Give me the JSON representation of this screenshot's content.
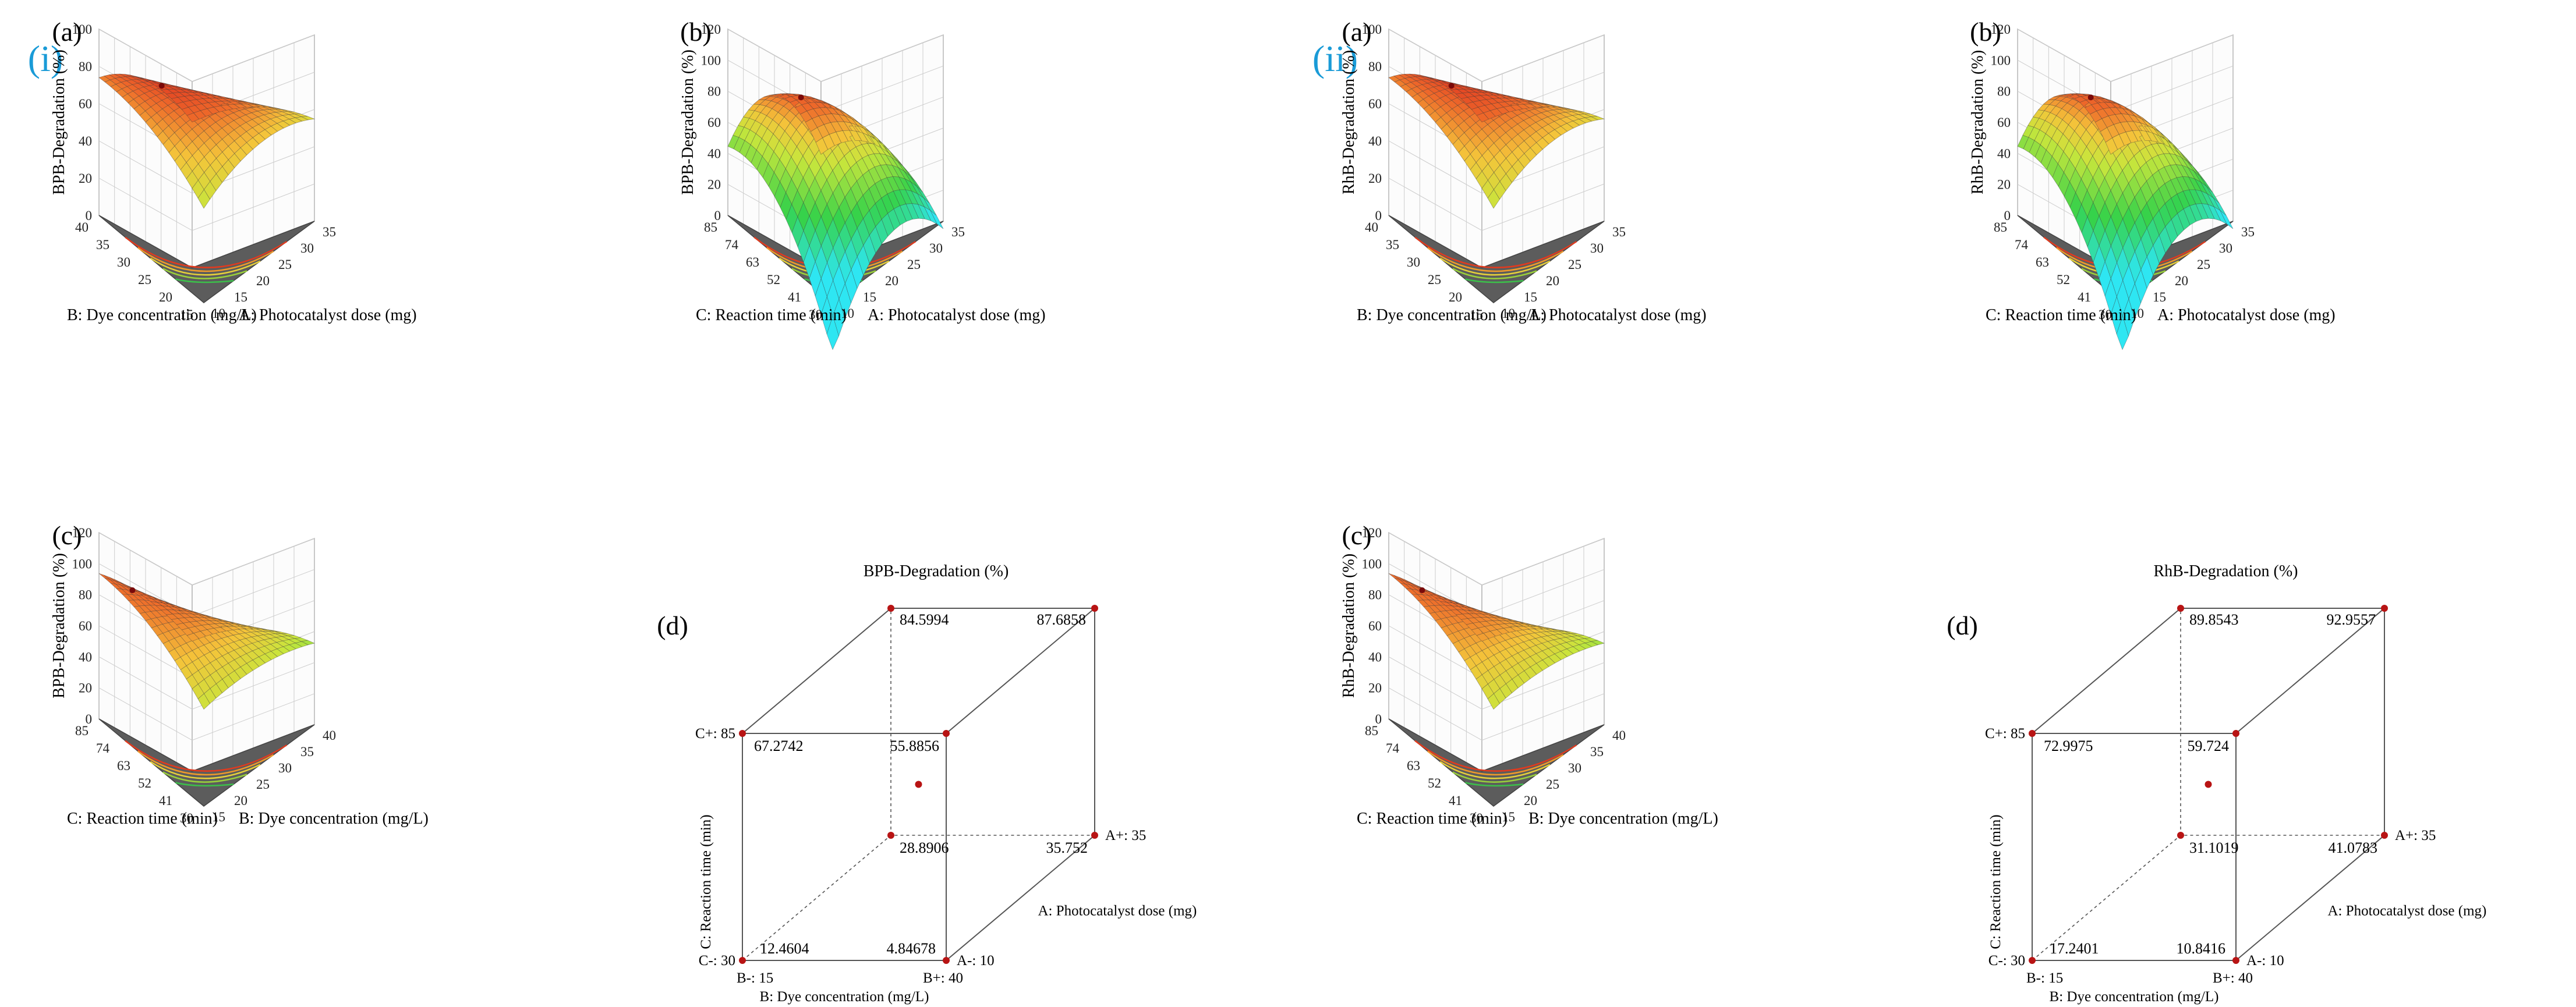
{
  "parts": [
    {
      "label": "(i)",
      "response": "BPB-Degradation (%)",
      "panels": [
        {
          "letter": "(a)",
          "type": "surface",
          "zlabel": "BPB-Degradation (%)",
          "zticks": [
            "0",
            "20",
            "40",
            "60",
            "80",
            "100"
          ],
          "leftAxisLabel": "B: Dye concentration (mg/L)",
          "leftTicks": [
            "40",
            "35",
            "30",
            "25",
            "20",
            "15"
          ],
          "rightAxisLabel": "A: Photocatalyst dose (mg)",
          "rightTicks": [
            "10",
            "15",
            "20",
            "25",
            "30",
            "35"
          ]
        },
        {
          "letter": "(b)",
          "type": "surface",
          "zlabel": "BPB-Degradation (%)",
          "zticks": [
            "0",
            "20",
            "40",
            "60",
            "80",
            "100",
            "120"
          ],
          "leftAxisLabel": "C: Reaction time (min)",
          "leftTicks": [
            "85",
            "74",
            "63",
            "52",
            "41",
            "30"
          ],
          "rightAxisLabel": "A: Photocatalyst dose (mg)",
          "rightTicks": [
            "10",
            "15",
            "20",
            "25",
            "30",
            "35"
          ]
        },
        {
          "letter": "(c)",
          "type": "surface",
          "zlabel": "BPB-Degradation (%)",
          "zticks": [
            "0",
            "20",
            "40",
            "60",
            "80",
            "100",
            "120"
          ],
          "leftAxisLabel": "C: Reaction time (min)",
          "leftTicks": [
            "85",
            "74",
            "63",
            "52",
            "41",
            "30"
          ],
          "rightAxisLabel": "B: Dye concentration (mg/L)",
          "rightTicks": [
            "15",
            "20",
            "25",
            "30",
            "35",
            "40"
          ]
        },
        {
          "letter": "(d)",
          "type": "cube",
          "title": "BPB-Degradation (%)",
          "ylabel": "C: Reaction time (min)",
          "xlabel": "B: Dye concentration (mg/L)",
          "zlabel": "A: Photocatalyst dose (mg)",
          "cLow": "C-: 30",
          "cHigh": "C+: 85",
          "bLow": "B-: 15",
          "bHigh": "B+: 40",
          "aLow": "A-: 10",
          "aHigh": "A+: 35",
          "values": {
            "bl": "12.4604",
            "br": "4.84678",
            "tl": "67.2742",
            "tr": "55.8856",
            "btl": "28.8906",
            "btr": "35.752",
            "ttl": "84.5994",
            "ttr": "87.6858"
          }
        }
      ]
    },
    {
      "label": "(ii)",
      "response": "RhB-Degradation (%)",
      "panels": [
        {
          "letter": "(a)",
          "type": "surface",
          "zlabel": "RhB-Degradation (%)",
          "zticks": [
            "0",
            "20",
            "40",
            "60",
            "80",
            "100"
          ],
          "leftAxisLabel": "B: Dye concentration (mg/L)",
          "leftTicks": [
            "40",
            "35",
            "30",
            "25",
            "20",
            "15"
          ],
          "rightAxisLabel": "A: Photocatalyst dose (mg)",
          "rightTicks": [
            "10",
            "15",
            "20",
            "25",
            "30",
            "35"
          ]
        },
        {
          "letter": "(b)",
          "type": "surface",
          "zlabel": "RhB-Degradation (%)",
          "zticks": [
            "0",
            "20",
            "40",
            "60",
            "80",
            "100",
            "120"
          ],
          "leftAxisLabel": "C: Reaction time (min)",
          "leftTicks": [
            "85",
            "74",
            "63",
            "52",
            "41",
            "30"
          ],
          "rightAxisLabel": "A: Photocatalyst dose (mg)",
          "rightTicks": [
            "10",
            "15",
            "20",
            "25",
            "30",
            "35"
          ]
        },
        {
          "letter": "(c)",
          "type": "surface",
          "zlabel": "RhB-Degradation (%)",
          "zticks": [
            "0",
            "20",
            "40",
            "60",
            "80",
            "100",
            "120"
          ],
          "leftAxisLabel": "C: Reaction time (min)",
          "leftTicks": [
            "85",
            "74",
            "63",
            "52",
            "41",
            "30"
          ],
          "rightAxisLabel": "B: Dye concentration (mg/L)",
          "rightTicks": [
            "15",
            "20",
            "25",
            "30",
            "35",
            "40"
          ]
        },
        {
          "letter": "(d)",
          "type": "cube",
          "title": "RhB-Degradation (%)",
          "ylabel": "C: Reaction time (min)",
          "xlabel": "B: Dye concentration (mg/L)",
          "zlabel": "A: Photocatalyst dose (mg)",
          "cLow": "C-: 30",
          "cHigh": "C+: 85",
          "bLow": "B-: 15",
          "bHigh": "B+: 40",
          "aLow": "A-: 10",
          "aHigh": "A+: 35",
          "values": {
            "bl": "17.2401",
            "br": "10.8416",
            "tl": "72.9975",
            "tr": "59.724",
            "btl": "31.1019",
            "btr": "41.0783",
            "ttl": "89.8543",
            "ttr": "92.9557"
          }
        }
      ]
    }
  ],
  "chart_data": [
    {
      "type": "surface",
      "panel": "(i)(a)",
      "z_label": "BPB-Degradation (%)",
      "zlim": [
        0,
        100
      ],
      "x_label": "A: Photocatalyst dose (mg)",
      "x_range": [
        10,
        35
      ],
      "y_label": "B: Dye concentration (mg/L)",
      "y_range": [
        15,
        40
      ],
      "peak_approx": 87
    },
    {
      "type": "surface",
      "panel": "(i)(b)",
      "z_label": "BPB-Degradation (%)",
      "zlim": [
        0,
        120
      ],
      "x_label": "A: Photocatalyst dose (mg)",
      "x_range": [
        10,
        35
      ],
      "y_label": "C: Reaction time (min)",
      "y_range": [
        30,
        85
      ],
      "peak_approx": 98
    },
    {
      "type": "surface",
      "panel": "(i)(c)",
      "z_label": "BPB-Degradation (%)",
      "zlim": [
        0,
        120
      ],
      "x_label": "B: Dye concentration (mg/L)",
      "x_range": [
        15,
        40
      ],
      "y_label": "C: Reaction time (min)",
      "y_range": [
        30,
        85
      ],
      "peak_approx": 95
    },
    {
      "type": "cube",
      "panel": "(i)(d)",
      "title": "BPB-Degradation (%)",
      "corners": [
        {
          "A": 10,
          "B": 15,
          "C": 30,
          "value": 12.4604
        },
        {
          "A": 10,
          "B": 40,
          "C": 30,
          "value": 4.84678
        },
        {
          "A": 10,
          "B": 15,
          "C": 85,
          "value": 67.2742
        },
        {
          "A": 10,
          "B": 40,
          "C": 85,
          "value": 55.8856
        },
        {
          "A": 35,
          "B": 15,
          "C": 30,
          "value": 28.8906
        },
        {
          "A": 35,
          "B": 40,
          "C": 30,
          "value": 35.752
        },
        {
          "A": 35,
          "B": 15,
          "C": 85,
          "value": 84.5994
        },
        {
          "A": 35,
          "B": 40,
          "C": 85,
          "value": 87.6858
        }
      ]
    },
    {
      "type": "surface",
      "panel": "(ii)(a)",
      "z_label": "RhB-Degradation (%)",
      "zlim": [
        0,
        100
      ],
      "x_label": "A: Photocatalyst dose (mg)",
      "x_range": [
        10,
        35
      ],
      "y_label": "B: Dye concentration (mg/L)",
      "y_range": [
        15,
        40
      ],
      "peak_approx": 90
    },
    {
      "type": "surface",
      "panel": "(ii)(b)",
      "z_label": "RhB-Degradation (%)",
      "zlim": [
        0,
        120
      ],
      "x_label": "A: Photocatalyst dose (mg)",
      "x_range": [
        10,
        35
      ],
      "y_label": "C: Reaction time (min)",
      "y_range": [
        30,
        85
      ],
      "peak_approx": 100
    },
    {
      "type": "surface",
      "panel": "(ii)(c)",
      "z_label": "RhB-Degradation (%)",
      "zlim": [
        0,
        120
      ],
      "x_label": "B: Dye concentration (mg/L)",
      "x_range": [
        15,
        40
      ],
      "y_label": "C: Reaction time (min)",
      "y_range": [
        30,
        85
      ],
      "peak_approx": 97
    },
    {
      "type": "cube",
      "panel": "(ii)(d)",
      "title": "RhB-Degradation (%)",
      "corners": [
        {
          "A": 10,
          "B": 15,
          "C": 30,
          "value": 17.2401
        },
        {
          "A": 10,
          "B": 40,
          "C": 30,
          "value": 10.8416
        },
        {
          "A": 10,
          "B": 15,
          "C": 85,
          "value": 72.9975
        },
        {
          "A": 10,
          "B": 40,
          "C": 85,
          "value": 59.724
        },
        {
          "A": 35,
          "B": 15,
          "C": 30,
          "value": 31.1019
        },
        {
          "A": 35,
          "B": 40,
          "C": 30,
          "value": 41.0783
        },
        {
          "A": 35,
          "B": 15,
          "C": 85,
          "value": 89.8543
        },
        {
          "A": 35,
          "B": 40,
          "C": 85,
          "value": 92.9557
        }
      ]
    }
  ]
}
